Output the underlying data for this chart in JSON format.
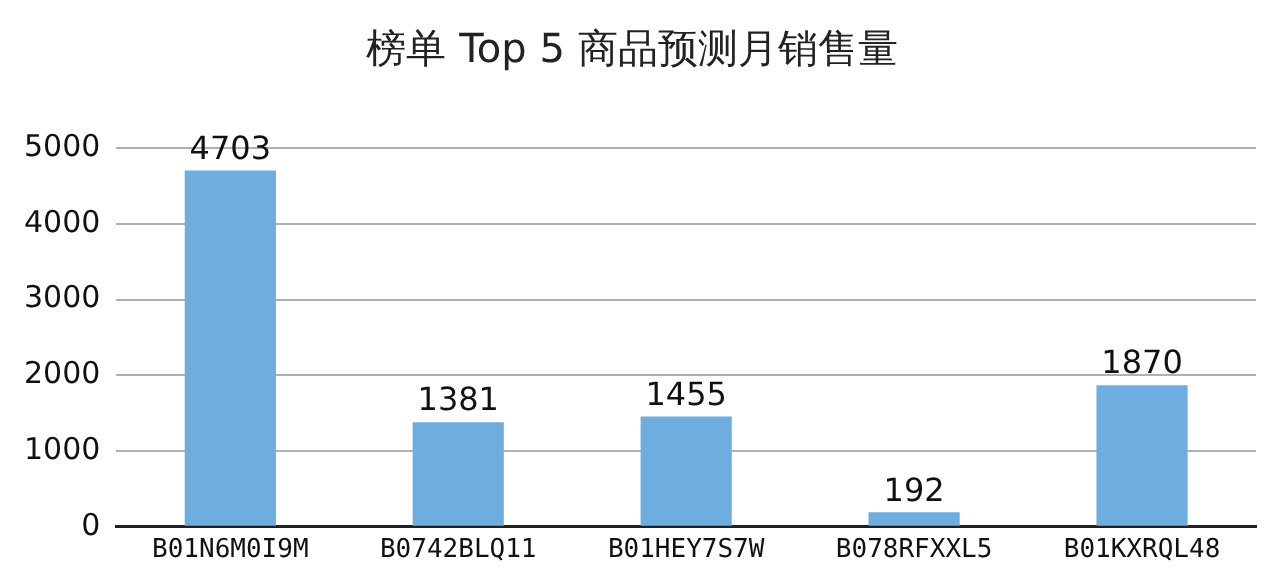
{
  "chart_data": {
    "type": "bar",
    "title": "榜单 Top 5 商品预测月销售量",
    "categories": [
      "B01N6M0I9M",
      "B0742BLQ11",
      "B01HEY7S7W",
      "B078RFXXL5",
      "B01KXRQL48"
    ],
    "values": [
      4703,
      1381,
      1455,
      192,
      1870
    ],
    "color": "#6daddf",
    "ylim": [
      0,
      5000
    ],
    "yticks": [
      0,
      1000,
      2000,
      3000,
      4000,
      5000
    ],
    "grid": "y",
    "data_labels": true
  }
}
